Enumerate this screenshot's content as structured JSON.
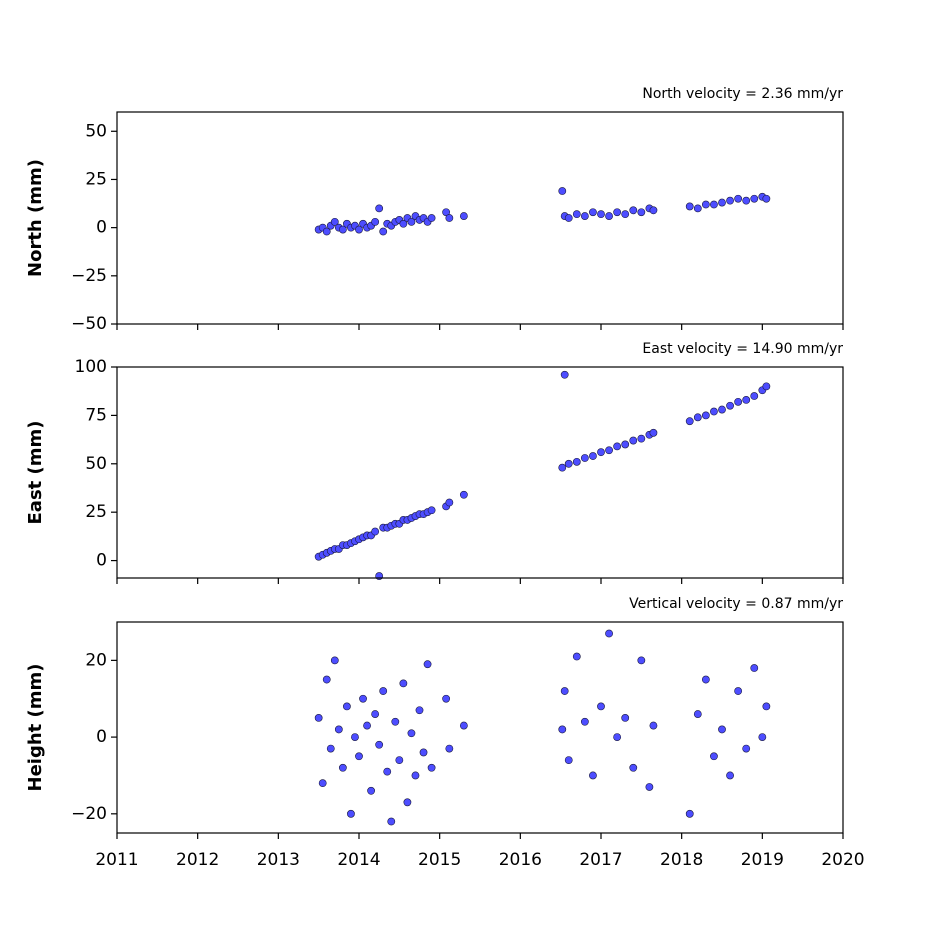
{
  "chart_data": [
    {
      "type": "scatter",
      "annotation": "North velocity = 2.36 mm/yr",
      "ylabel": "North (mm)",
      "color": "#4d4dff",
      "xlim": [
        2011,
        2020
      ],
      "xticks": [
        2011,
        2012,
        2013,
        2014,
        2015,
        2016,
        2017,
        2018,
        2019,
        2020
      ],
      "xtick_labels": false,
      "ylim": [
        -50,
        60
      ],
      "yticks": [
        {
          "value": -50,
          "label": "−50"
        },
        {
          "value": -25,
          "label": "−25"
        },
        0,
        25,
        50
      ],
      "x": [
        2013.5,
        2013.55,
        2013.6,
        2013.65,
        2013.7,
        2013.75,
        2013.8,
        2013.85,
        2013.9,
        2013.95,
        2014.0,
        2014.05,
        2014.1,
        2014.15,
        2014.2,
        2014.25,
        2014.3,
        2014.35,
        2014.4,
        2014.45,
        2014.5,
        2014.55,
        2014.6,
        2014.65,
        2014.7,
        2014.75,
        2014.8,
        2014.85,
        2014.9,
        2015.08,
        2015.12,
        2015.3,
        2016.52,
        2016.55,
        2016.6,
        2016.7,
        2016.8,
        2016.9,
        2017.0,
        2017.1,
        2017.2,
        2017.3,
        2017.4,
        2017.5,
        2017.6,
        2017.65,
        2018.1,
        2018.2,
        2018.3,
        2018.4,
        2018.5,
        2018.6,
        2018.7,
        2018.8,
        2018.9,
        2019.0,
        2019.05
      ],
      "values": [
        -1,
        0,
        -2,
        1,
        3,
        0,
        -1,
        2,
        0,
        1,
        -1,
        2,
        0,
        1,
        3,
        10,
        -2,
        2,
        1,
        3,
        4,
        2,
        5,
        3,
        6,
        4,
        5,
        3,
        5,
        8,
        5,
        6,
        19,
        6,
        5,
        7,
        6,
        8,
        7,
        6,
        8,
        7,
        9,
        8,
        10,
        9,
        11,
        10,
        12,
        12,
        13,
        14,
        15,
        14,
        15,
        16,
        15
      ]
    },
    {
      "type": "scatter",
      "annotation": "East velocity = 14.90 mm/yr",
      "ylabel": "East (mm)",
      "color": "#4d4dff",
      "xlim": [
        2011,
        2020
      ],
      "xticks": [
        2011,
        2012,
        2013,
        2014,
        2015,
        2016,
        2017,
        2018,
        2019,
        2020
      ],
      "xtick_labels": false,
      "ylim": [
        -9,
        100
      ],
      "yticks": [
        0,
        25,
        50,
        75,
        100
      ],
      "x": [
        2013.5,
        2013.55,
        2013.6,
        2013.65,
        2013.7,
        2013.75,
        2013.8,
        2013.85,
        2013.9,
        2013.95,
        2014.0,
        2014.05,
        2014.1,
        2014.15,
        2014.2,
        2014.25,
        2014.3,
        2014.35,
        2014.4,
        2014.45,
        2014.5,
        2014.55,
        2014.6,
        2014.65,
        2014.7,
        2014.75,
        2014.8,
        2014.85,
        2014.9,
        2015.08,
        2015.12,
        2015.3,
        2016.52,
        2016.55,
        2016.6,
        2016.7,
        2016.8,
        2016.9,
        2017.0,
        2017.1,
        2017.2,
        2017.3,
        2017.4,
        2017.5,
        2017.6,
        2017.65,
        2018.1,
        2018.2,
        2018.3,
        2018.4,
        2018.5,
        2018.6,
        2018.7,
        2018.8,
        2018.9,
        2019.0,
        2019.05
      ],
      "values": [
        2,
        3,
        4,
        5,
        6,
        6,
        8,
        8,
        9,
        10,
        11,
        12,
        13,
        13,
        15,
        -8,
        17,
        17,
        18,
        19,
        19,
        21,
        21,
        22,
        23,
        24,
        24,
        25,
        26,
        28,
        30,
        34,
        48,
        96,
        50,
        51,
        53,
        54,
        56,
        57,
        59,
        60,
        62,
        63,
        65,
        66,
        72,
        74,
        75,
        77,
        78,
        80,
        82,
        83,
        85,
        88,
        90
      ]
    },
    {
      "type": "scatter",
      "annotation": "Vertical velocity = 0.87 mm/yr",
      "ylabel": "Height (mm)",
      "color": "#4d4dff",
      "xlim": [
        2011,
        2020
      ],
      "xticks": [
        2011,
        2012,
        2013,
        2014,
        2015,
        2016,
        2017,
        2018,
        2019,
        2020
      ],
      "xtick_labels": true,
      "ylim": [
        -25,
        30
      ],
      "yticks": [
        {
          "value": -20,
          "label": "−20"
        },
        0,
        20
      ],
      "x": [
        2013.5,
        2013.55,
        2013.6,
        2013.65,
        2013.7,
        2013.75,
        2013.8,
        2013.85,
        2013.9,
        2013.95,
        2014.0,
        2014.05,
        2014.1,
        2014.15,
        2014.2,
        2014.25,
        2014.3,
        2014.35,
        2014.4,
        2014.45,
        2014.5,
        2014.55,
        2014.6,
        2014.65,
        2014.7,
        2014.75,
        2014.8,
        2014.85,
        2014.9,
        2015.08,
        2015.12,
        2015.3,
        2016.52,
        2016.55,
        2016.6,
        2016.7,
        2016.8,
        2016.9,
        2017.0,
        2017.1,
        2017.2,
        2017.3,
        2017.4,
        2017.5,
        2017.6,
        2017.65,
        2018.1,
        2018.2,
        2018.3,
        2018.4,
        2018.5,
        2018.6,
        2018.7,
        2018.8,
        2018.9,
        2019.0,
        2019.05
      ],
      "values": [
        5,
        -12,
        15,
        -3,
        20,
        2,
        -8,
        8,
        -20,
        0,
        -5,
        10,
        3,
        -14,
        6,
        -2,
        12,
        -9,
        -22,
        4,
        -6,
        14,
        -17,
        1,
        -10,
        7,
        -4,
        19,
        -8,
        10,
        -3,
        3,
        2,
        12,
        -6,
        21,
        4,
        -10,
        8,
        27,
        0,
        5,
        -8,
        20,
        -13,
        3,
        -20,
        6,
        15,
        -5,
        2,
        -10,
        12,
        -3,
        18,
        0,
        8
      ]
    }
  ]
}
